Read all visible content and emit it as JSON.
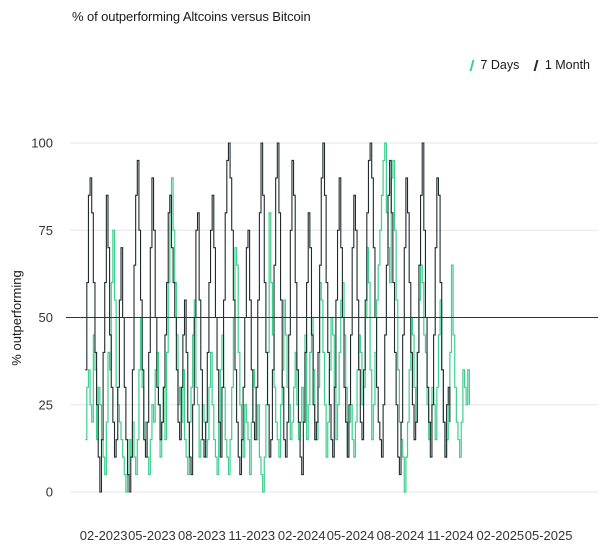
{
  "title": "% of outperforming Altcoins versus Bitcoin",
  "legend": {
    "items": [
      {
        "label": "7 Days",
        "color": "#3ecf8e"
      },
      {
        "label": "1 Month",
        "color": "#1f2a2e"
      }
    ]
  },
  "chart_data": {
    "type": "line",
    "title": "% of outperforming Altcoins versus Bitcoin",
    "xlabel": "",
    "ylabel": "% outperforming",
    "ylim": [
      0,
      100
    ],
    "yticks": [
      0,
      25,
      50,
      75,
      100
    ],
    "xlim": [
      "2022-12-01",
      "2025-07-31"
    ],
    "xticks": [
      {
        "date": "2023-02-01",
        "label": "02-2023"
      },
      {
        "date": "2023-05-01",
        "label": "05-2023"
      },
      {
        "date": "2023-08-01",
        "label": "08-2023"
      },
      {
        "date": "2023-11-01",
        "label": "11-2023"
      },
      {
        "date": "2024-02-01",
        "label": "02-2024"
      },
      {
        "date": "2024-05-01",
        "label": "05-2024"
      },
      {
        "date": "2024-08-01",
        "label": "08-2024"
      },
      {
        "date": "2024-11-01",
        "label": "11-2024"
      },
      {
        "date": "2025-02-01",
        "label": "02-2025"
      },
      {
        "date": "2025-05-01",
        "label": "05-2025"
      }
    ],
    "reference_line": {
      "y": 50
    },
    "grid": true,
    "legend_position": "top-right",
    "series": [
      {
        "name": "7 Days",
        "color": "#3ecf8e",
        "start": "2022-12-29",
        "step_days": 3,
        "values": [
          15,
          30,
          35,
          25,
          20,
          45,
          35,
          15,
          30,
          25,
          15,
          10,
          5,
          20,
          40,
          35,
          60,
          75,
          55,
          30,
          25,
          20,
          15,
          10,
          5,
          0,
          5,
          15,
          10,
          20,
          10,
          5,
          15,
          35,
          50,
          30,
          15,
          20,
          10,
          5,
          15,
          25,
          20,
          35,
          40,
          25,
          10,
          20,
          30,
          15,
          40,
          60,
          85,
          90,
          75,
          60,
          45,
          25,
          30,
          20,
          35,
          15,
          10,
          5,
          20,
          30,
          45,
          55,
          30,
          25,
          10,
          15,
          25,
          20,
          10,
          15,
          30,
          40,
          25,
          15,
          10,
          5,
          20,
          35,
          45,
          30,
          15,
          10,
          5,
          15,
          30,
          50,
          70,
          65,
          40,
          25,
          15,
          10,
          25,
          20,
          15,
          5,
          20,
          35,
          30,
          15,
          25,
          10,
          5,
          0,
          10,
          25,
          40,
          80,
          60,
          45,
          30,
          20,
          15,
          10,
          25,
          35,
          55,
          45,
          30,
          25,
          15,
          20,
          30,
          40,
          25,
          15,
          20,
          30,
          20,
          45,
          15,
          25,
          40,
          50,
          35,
          20,
          15,
          30,
          60,
          55,
          40,
          25,
          10,
          20,
          35,
          50,
          45,
          30,
          15,
          25,
          40,
          55,
          60,
          45,
          30,
          10,
          20,
          25,
          15,
          10,
          20,
          35,
          45,
          40,
          25,
          30,
          50,
          70,
          60,
          35,
          15,
          25,
          40,
          55,
          65,
          75,
          85,
          95,
          100,
          80,
          70,
          60,
          90,
          95,
          75,
          55,
          35,
          20,
          15,
          10,
          0,
          10,
          20,
          35,
          50,
          45,
          30,
          20,
          40,
          55,
          65,
          60,
          45,
          40,
          25,
          15,
          20,
          30,
          25,
          15,
          30,
          45,
          55,
          35,
          20,
          10,
          15,
          25,
          40,
          65,
          45,
          30,
          20,
          15,
          10,
          20,
          35,
          30,
          25,
          35,
          25
        ],
        "approximate": true
      },
      {
        "name": "1 Month",
        "color": "#1f2a2e",
        "start": "2022-12-29",
        "step_days": 3,
        "values": [
          35,
          60,
          85,
          90,
          80,
          60,
          40,
          25,
          10,
          0,
          15,
          40,
          60,
          85,
          70,
          45,
          30,
          20,
          10,
          15,
          30,
          55,
          70,
          50,
          30,
          15,
          5,
          0,
          10,
          35,
          65,
          85,
          95,
          75,
          55,
          35,
          15,
          10,
          20,
          40,
          70,
          90,
          75,
          50,
          30,
          25,
          15,
          20,
          30,
          45,
          60,
          80,
          85,
          70,
          60,
          50,
          35,
          20,
          15,
          30,
          45,
          55,
          40,
          20,
          10,
          5,
          25,
          50,
          75,
          80,
          55,
          35,
          15,
          10,
          20,
          40,
          60,
          75,
          85,
          70,
          50,
          35,
          20,
          10,
          30,
          55,
          80,
          95,
          100,
          90,
          75,
          55,
          35,
          20,
          10,
          5,
          15,
          30,
          50,
          70,
          75,
          55,
          35,
          20,
          15,
          30,
          55,
          80,
          100,
          85,
          60,
          40,
          25,
          10,
          15,
          35,
          65,
          90,
          100,
          80,
          55,
          30,
          15,
          10,
          20,
          45,
          75,
          95,
          85,
          60,
          35,
          20,
          10,
          5,
          20,
          40,
          60,
          80,
          70,
          45,
          25,
          15,
          20,
          40,
          65,
          90,
          100,
          85,
          60,
          40,
          25,
          15,
          10,
          30,
          55,
          75,
          90,
          70,
          50,
          30,
          20,
          10,
          25,
          45,
          70,
          85,
          75,
          55,
          35,
          20,
          15,
          35,
          55,
          80,
          95,
          100,
          90,
          70,
          50,
          30,
          20,
          15,
          10,
          25,
          45,
          65,
          85,
          95,
          80,
          60,
          40,
          25,
          10,
          5,
          20,
          45,
          70,
          90,
          80,
          60,
          40,
          25,
          15,
          20,
          40,
          65,
          85,
          100,
          75,
          50,
          30,
          20,
          10,
          25,
          45,
          70,
          90,
          85,
          60,
          35,
          20,
          10,
          25,
          30,
          20
        ],
        "approximate": true
      }
    ]
  }
}
